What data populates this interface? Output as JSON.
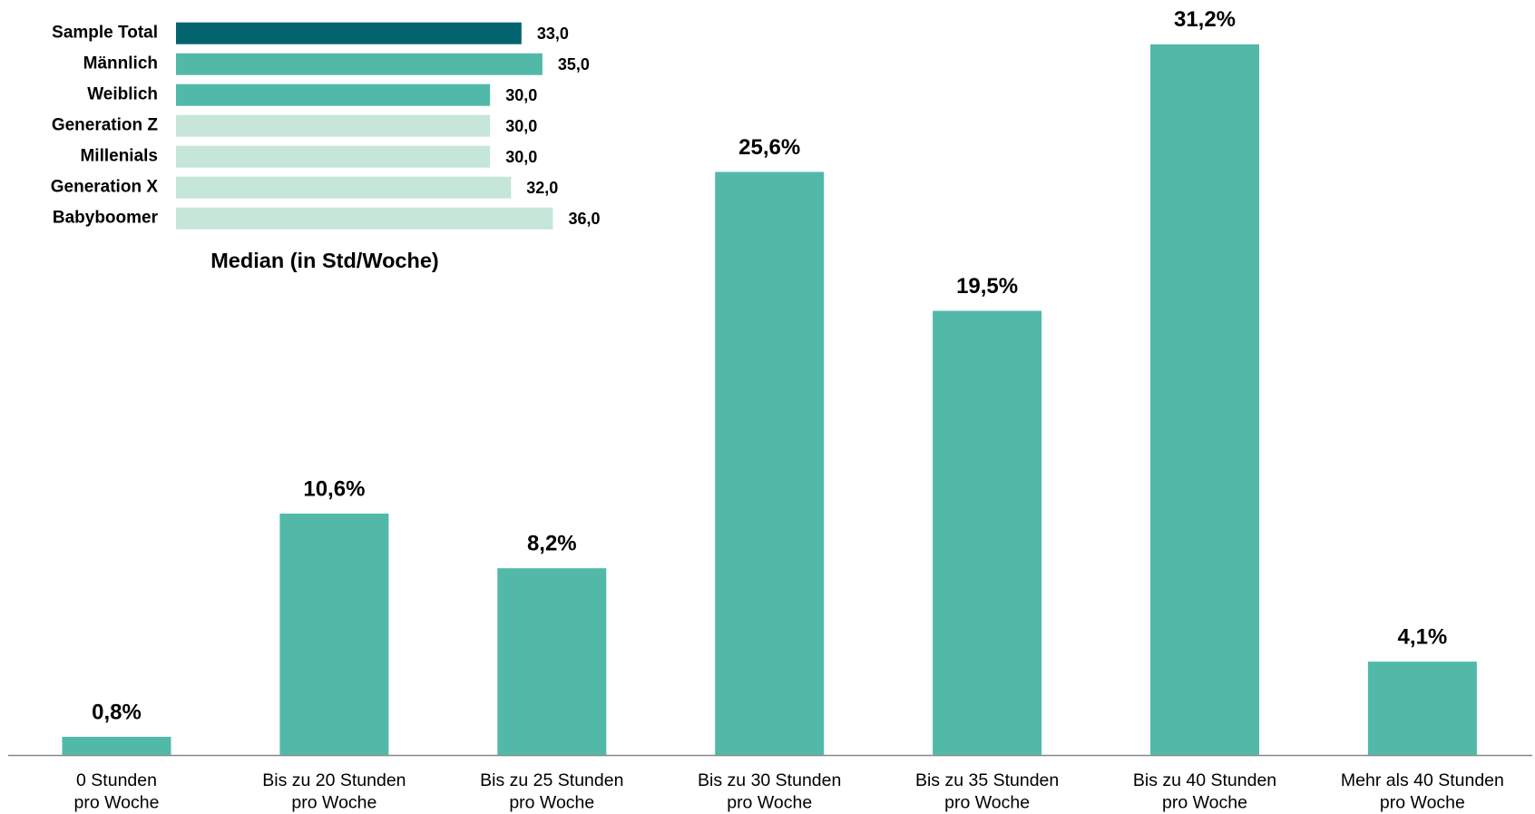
{
  "chart_data": [
    {
      "type": "bar",
      "categories": [
        [
          "0 Stunden",
          "pro Woche"
        ],
        [
          "Bis zu 20 Stunden",
          "pro Woche"
        ],
        [
          "Bis zu 25 Stunden",
          "pro Woche"
        ],
        [
          "Bis zu 30 Stunden",
          "pro Woche"
        ],
        [
          "Bis zu 35 Stunden",
          "pro Woche"
        ],
        [
          "Bis zu 40 Stunden",
          "pro Woche"
        ],
        [
          "Mehr als 40 Stunden",
          "pro Woche"
        ]
      ],
      "values": [
        0.8,
        10.6,
        8.2,
        25.6,
        19.5,
        31.2,
        4.1
      ],
      "value_labels": [
        "0,8%",
        "10,6%",
        "8,2%",
        "25,6%",
        "19,5%",
        "31,2%",
        "4,1%"
      ],
      "color": "#52b9a9"
    },
    {
      "type": "hbar",
      "title": "Median (in Std/Woche)",
      "categories": [
        "Sample Total",
        "Männlich",
        "Weiblich",
        "Generation Z",
        "Millenials",
        "Generation X",
        "Babyboomer"
      ],
      "values": [
        33.0,
        35.0,
        30.0,
        30.0,
        30.0,
        32.0,
        36.0
      ],
      "value_labels": [
        "33,0",
        "35,0",
        "30,0",
        "30,0",
        "30,0",
        "32,0",
        "36,0"
      ],
      "colors": [
        "#036470",
        "#52b9a9",
        "#52b9a9",
        "#c5e6d9",
        "#c5e6d9",
        "#c5e6d9",
        "#c5e6d9"
      ]
    }
  ]
}
